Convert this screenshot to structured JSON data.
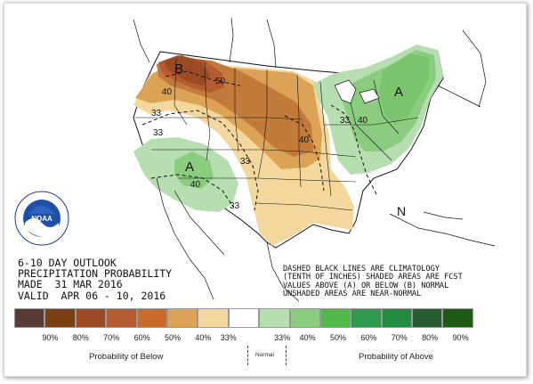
{
  "outlook": {
    "line1": "6-10 DAY OUTLOOK",
    "line2": "PRECIPITATION PROBABILITY",
    "line3": "MADE  31 MAR 2016",
    "line4": "VALID  APR 06 - 10, 2016"
  },
  "notes": {
    "line1": "DASHED BLACK LINES ARE CLIMATOLOGY",
    "line2": "(TENTH OF INCHES) SHADED AREAS ARE FCST",
    "line3": "VALUES ABOVE (A) OR BELOW (B) NORMAL",
    "line4": "UNSHADED AREAS ARE NEAR-NORMAL"
  },
  "map_labels": {
    "below_marker": "B",
    "above_west_marker": "A",
    "above_east_marker": "A",
    "near_normal_marker": "N",
    "contours": {
      "nw_50": "50",
      "nw_40": "40",
      "w_33": "33",
      "sw_33": "33",
      "sw_40": "40",
      "center_33": "33",
      "center_40": "40",
      "ne_33": "33",
      "ne_40": "40",
      "south_33": "33"
    }
  },
  "legend": {
    "colors": [
      "#5a3a34",
      "#7b3f12",
      "#9c4a23",
      "#b45b31",
      "#c96b2b",
      "#dca255",
      "#f3d79c",
      "#ffffff",
      "#b7deb0",
      "#8acd7e",
      "#51b84a",
      "#2e9b4c",
      "#1f8c3e",
      "#245c2f",
      "#1f5b15"
    ],
    "ticks": [
      "90%",
      "80%",
      "70%",
      "60%",
      "50%",
      "40%",
      "33%",
      "33%",
      "40%",
      "50%",
      "60%",
      "70%",
      "80%",
      "90%"
    ],
    "below_label": "Probability of Below",
    "normal_label": "Normal",
    "above_label": "Probability of Above"
  },
  "logo": {
    "text": "NOAA",
    "ring_text": "NATIONAL OCEANIC AND ATMOSPHERIC ADMINISTRATION · U.S. DEPARTMENT OF COMMERCE"
  }
}
